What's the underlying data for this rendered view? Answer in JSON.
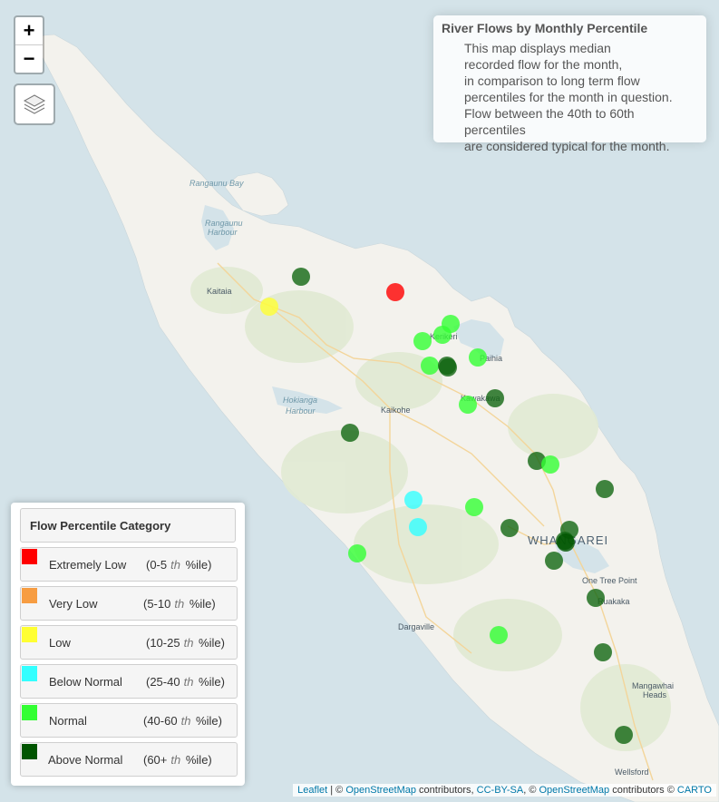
{
  "map": {
    "places": [
      {
        "name": "Kaitaia",
        "style": "town"
      },
      {
        "name": "Kerikeri",
        "style": "town"
      },
      {
        "name": "Paihia",
        "style": "town"
      },
      {
        "name": "Kawakawa",
        "style": "town"
      },
      {
        "name": "Kaikohe",
        "style": "town"
      },
      {
        "name": "WHANGAREI",
        "style": "city"
      },
      {
        "name": "One Tree Point",
        "style": "town"
      },
      {
        "name": "Ruakaka",
        "style": "town"
      },
      {
        "name": "Dargaville",
        "style": "town"
      },
      {
        "name": "Mangawhai Heads",
        "style": "town"
      },
      {
        "name": "Wellsford",
        "style": "town"
      }
    ],
    "water_labels": [
      "Rangaunu Bay",
      "Rangaunu Harbour",
      "Hokianga Harbour"
    ],
    "colors": {
      "land": "#f3f2ed",
      "forest": "#e1ead3",
      "sea": "#d4e3e9",
      "road": "#f3d59a"
    }
  },
  "controls": {
    "zoom_in": "+",
    "zoom_out": "−",
    "layers_icon": "layers-icon"
  },
  "info": {
    "title": "River Flows by Monthly Percentile",
    "lines": [
      "This map displays median",
      "recorded flow for the month,",
      "in comparison to long term flow",
      "percentiles for the month in question.",
      "Flow between the 40th to 60th percentiles",
      "are considered typical for the month."
    ]
  },
  "legend": {
    "title": "Flow Percentile Category",
    "items": [
      {
        "label": "Extremely Low",
        "range_start": "(0-5",
        "th": "th",
        "range_end": "%ile)",
        "color": "#ff0000"
      },
      {
        "label": "Very Low",
        "range_start": "(5-10",
        "th": "th",
        "range_end": "%ile)",
        "color": "#f79d42"
      },
      {
        "label": "Low",
        "range_start": "(10-25",
        "th": "th",
        "range_end": "%ile)",
        "color": "#ffff33"
      },
      {
        "label": "Below Normal",
        "range_start": "(25-40",
        "th": "th",
        "range_end": "%ile)",
        "color": "#33ffff"
      },
      {
        "label": "Normal",
        "range_start": "(40-60",
        "th": "th",
        "range_end": "%ile)",
        "color": "#33ff33"
      },
      {
        "label": "Above Normal",
        "range_start": "(60+",
        "th": "th",
        "range_end": "%ile)",
        "color": "#005500"
      }
    ]
  },
  "attribution": {
    "leaflet": "Leaflet",
    "sep1": " | © ",
    "osm1": "OpenStreetMap",
    "contributors1": " contributors, ",
    "ccbysa": "CC-BY-SA",
    "sep2": ", © ",
    "osm2": "OpenStreetMap",
    "contributors2": " contributors © ",
    "carto": "CARTO"
  }
}
